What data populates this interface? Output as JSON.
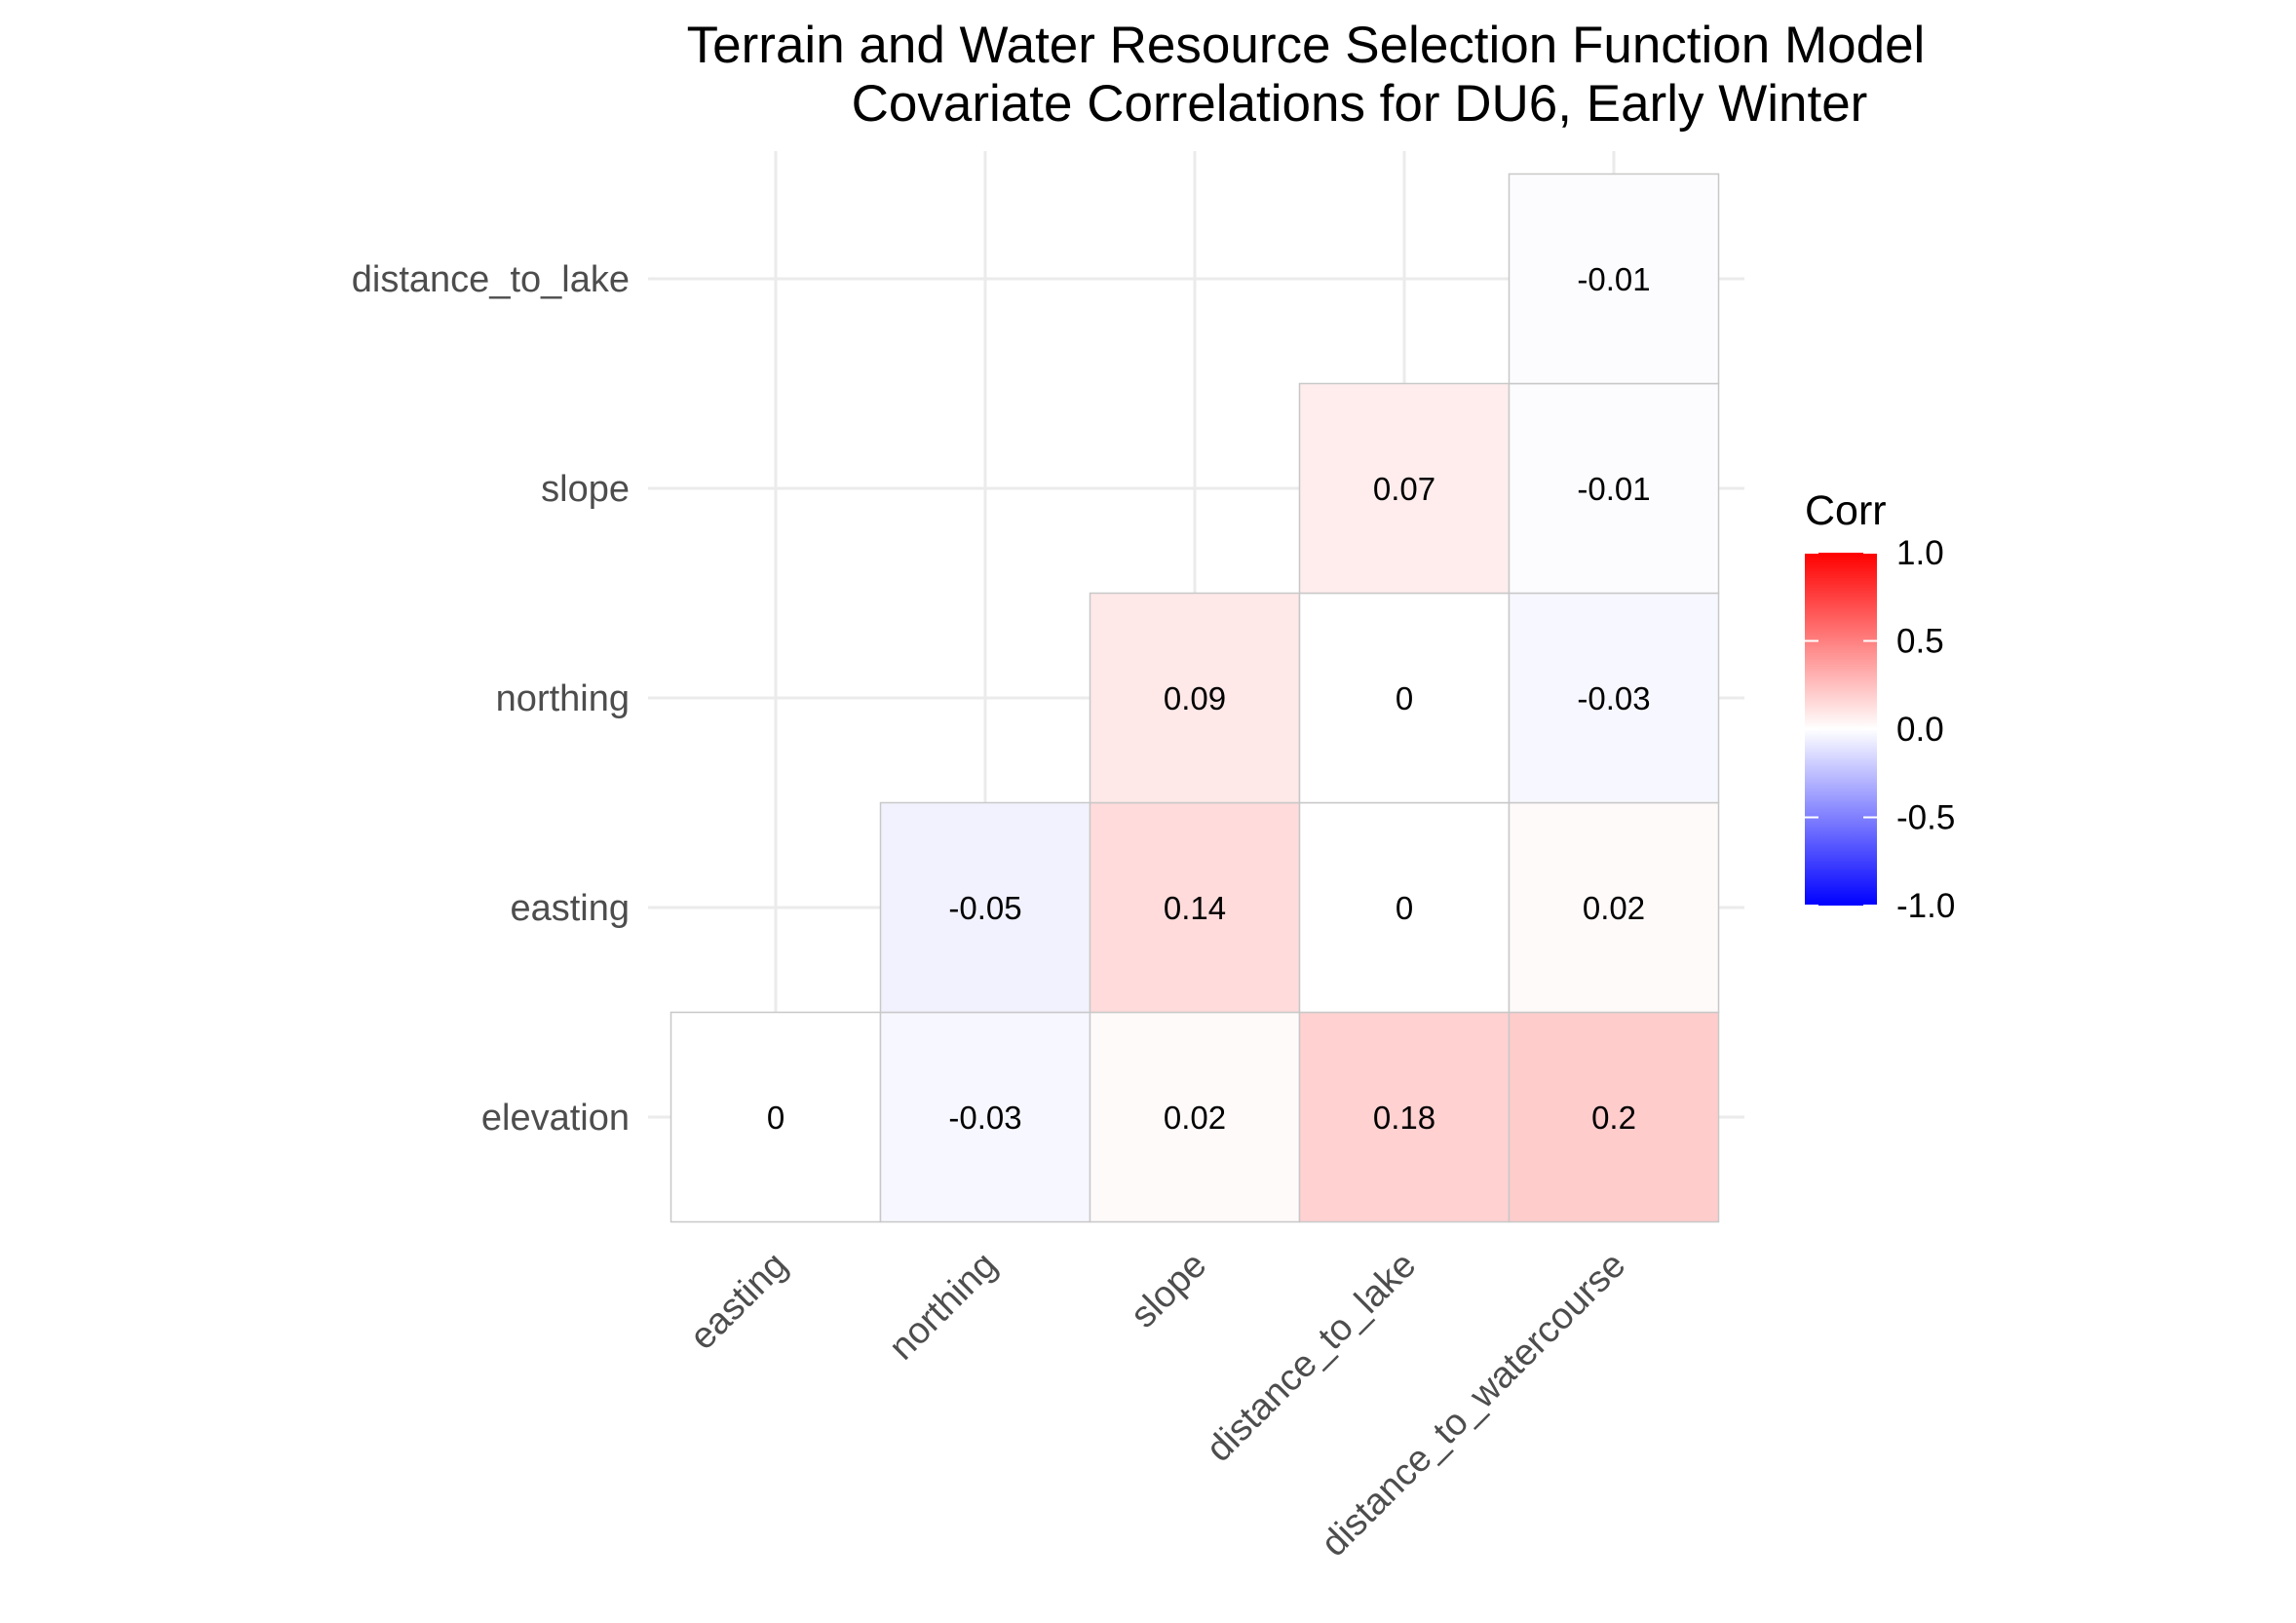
{
  "chart_data": {
    "type": "heatmap",
    "title_lines": [
      "Terrain and Water Resource Selection Function Model",
      "Covariate Correlations for DU6, Early Winter"
    ],
    "x_categories": [
      "easting",
      "northing",
      "slope",
      "distance_to_lake",
      "distance_to_watercourse"
    ],
    "y_categories": [
      "elevation",
      "easting",
      "northing",
      "slope",
      "distance_to_lake"
    ],
    "cells": [
      {
        "x": "easting",
        "y": "elevation",
        "value": 0,
        "label": "0"
      },
      {
        "x": "northing",
        "y": "elevation",
        "value": -0.03,
        "label": "-0.03"
      },
      {
        "x": "slope",
        "y": "elevation",
        "value": 0.02,
        "label": "0.02"
      },
      {
        "x": "distance_to_lake",
        "y": "elevation",
        "value": 0.18,
        "label": "0.18"
      },
      {
        "x": "distance_to_watercourse",
        "y": "elevation",
        "value": 0.2,
        "label": "0.2"
      },
      {
        "x": "northing",
        "y": "easting",
        "value": -0.05,
        "label": "-0.05"
      },
      {
        "x": "slope",
        "y": "easting",
        "value": 0.14,
        "label": "0.14"
      },
      {
        "x": "distance_to_lake",
        "y": "easting",
        "value": 0,
        "label": "0"
      },
      {
        "x": "distance_to_watercourse",
        "y": "easting",
        "value": 0.02,
        "label": "0.02"
      },
      {
        "x": "slope",
        "y": "northing",
        "value": 0.09,
        "label": "0.09"
      },
      {
        "x": "distance_to_lake",
        "y": "northing",
        "value": 0,
        "label": "0"
      },
      {
        "x": "distance_to_watercourse",
        "y": "northing",
        "value": -0.03,
        "label": "-0.03"
      },
      {
        "x": "distance_to_lake",
        "y": "slope",
        "value": 0.07,
        "label": "0.07"
      },
      {
        "x": "distance_to_watercourse",
        "y": "slope",
        "value": -0.01,
        "label": "-0.01"
      },
      {
        "x": "distance_to_watercourse",
        "y": "distance_to_lake",
        "value": -0.01,
        "label": "-0.01"
      }
    ],
    "legend": {
      "title": "Corr",
      "ticks": [
        {
          "value": 1.0,
          "label": "1.0"
        },
        {
          "value": 0.5,
          "label": "0.5"
        },
        {
          "value": 0.0,
          "label": "0.0"
        },
        {
          "value": -0.5,
          "label": "-0.5"
        },
        {
          "value": -1.0,
          "label": "-1.0"
        }
      ],
      "range": [
        -1,
        1
      ],
      "placement": "right"
    },
    "colors": {
      "low": "#0000ff",
      "mid": "#ffffff",
      "high": "#ff0000",
      "grid": "#ebebeb",
      "cell_border": "#c8c8c8"
    },
    "grid": true
  }
}
